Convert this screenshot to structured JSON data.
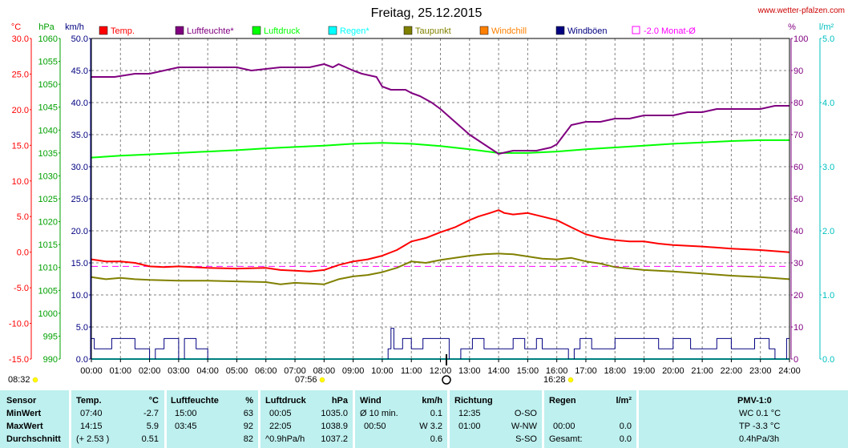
{
  "chart_data": {
    "type": "line",
    "title": "Freitag, 25.12.2015",
    "site": "www.wetter-pfalzen.com",
    "x_range": [
      "00:00",
      "24:00"
    ],
    "x_ticks": [
      "00:00",
      "01:00",
      "02:00",
      "03:00",
      "04:00",
      "05:00",
      "06:00",
      "07:00",
      "08:00",
      "09:00",
      "10:00",
      "11:00",
      "12:00",
      "13:00",
      "14:00",
      "15:00",
      "16:00",
      "17:00",
      "18:00",
      "19:00",
      "20:00",
      "21:00",
      "22:00",
      "23:00",
      "24:00"
    ],
    "sunrise": "08:32",
    "sunset": "16:28",
    "sun_marker": "07:56",
    "axes": {
      "temp": {
        "unit": "°C",
        "ylim": [
          -15,
          30
        ],
        "ticks": [
          "30.0",
          "25.0",
          "20.0",
          "15.0",
          "10.0",
          "5.0",
          "0.0",
          "-5.0",
          "-10.0",
          "-15.0"
        ],
        "color": "#ff0000"
      },
      "pressure": {
        "unit": "hPa",
        "ylim": [
          990,
          1060
        ],
        "ticks": [
          "1060",
          "1055",
          "1050",
          "1045",
          "1040",
          "1035",
          "1030",
          "1025",
          "1020",
          "1015",
          "1010",
          "1005",
          "1000",
          "995",
          "990"
        ],
        "color": "#00c000"
      },
      "wind": {
        "unit": "km/h",
        "ylim": [
          0,
          50
        ],
        "ticks": [
          "50.0",
          "45.0",
          "40.0",
          "35.0",
          "30.0",
          "25.0",
          "20.0",
          "15.0",
          "10.0",
          "5.0",
          "0.0"
        ],
        "color": "#000080"
      },
      "humidity": {
        "unit": "%",
        "ylim": [
          0,
          100
        ],
        "ticks": [
          "100",
          "90",
          "80",
          "70",
          "60",
          "50",
          "40",
          "30",
          "20",
          "10",
          "0"
        ],
        "color": "#800080"
      },
      "rain": {
        "unit": "l/m²",
        "ylim": [
          0,
          5
        ],
        "ticks": [
          "5.0",
          "4.0",
          "3.0",
          "2.0",
          "1.0",
          "0.0"
        ],
        "color": "#00c0c0"
      }
    },
    "legend": [
      {
        "name": "Temp.",
        "color": "#ff0000"
      },
      {
        "name": "Luftfeuchte*",
        "color": "#800080"
      },
      {
        "name": "Luftdruck",
        "color": "#00ff00"
      },
      {
        "name": "Regen*",
        "color": "#00ffff"
      },
      {
        "name": "Taupunkt",
        "color": "#808000"
      },
      {
        "name": "Windchill",
        "color": "#ff8000"
      },
      {
        "name": "Windböen",
        "color": "#000080"
      },
      {
        "name": "-2.0 Monat-Ø",
        "color": "#ff00ff"
      }
    ],
    "series": [
      {
        "name": "Luftfeuchte*",
        "axis": "humidity",
        "color": "#800080",
        "x": [
          0,
          0.8,
          1.5,
          2,
          2.5,
          3,
          4,
          5,
          5.5,
          6.5,
          7.5,
          8,
          8.3,
          8.5,
          9,
          9.3,
          9.8,
          10,
          10.3,
          10.8,
          11,
          11.3,
          11.7,
          12,
          12.5,
          13,
          13.5,
          14,
          14.5,
          15,
          15.3,
          15.8,
          16,
          16.5,
          17,
          17.5,
          18,
          18.5,
          19,
          19.5,
          20,
          20.5,
          21,
          21.5,
          22,
          22.5,
          23,
          23.5,
          24
        ],
        "y": [
          88,
          88,
          89,
          89,
          90,
          91,
          91,
          91,
          90,
          91,
          91,
          92,
          91,
          92,
          90,
          89,
          88,
          85,
          84,
          84,
          83,
          82,
          80,
          78,
          74,
          70,
          67,
          64,
          65,
          65,
          65,
          66,
          67,
          73,
          74,
          74,
          75,
          75,
          76,
          76,
          76,
          77,
          77,
          78,
          78,
          78,
          78,
          79,
          79
        ]
      },
      {
        "name": "Luftdruck",
        "axis": "pressure",
        "color": "#00ff00",
        "x": [
          0,
          1,
          2,
          3,
          4,
          5,
          6,
          7,
          8,
          9,
          10,
          11,
          12,
          13,
          14,
          15,
          16,
          17,
          18,
          19,
          20,
          21,
          22,
          23,
          24
        ],
        "y": [
          1034,
          1034.4,
          1034.7,
          1035,
          1035.3,
          1035.6,
          1036,
          1036.3,
          1036.6,
          1037,
          1037.2,
          1037,
          1036.5,
          1035.8,
          1035,
          1035,
          1035.3,
          1035.8,
          1036.2,
          1036.6,
          1037,
          1037.3,
          1037.6,
          1037.8,
          1037.8
        ]
      },
      {
        "name": "Temp.",
        "axis": "temp",
        "color": "#ff0000",
        "x": [
          0,
          0.5,
          1,
          1.5,
          2,
          2.5,
          3,
          4,
          5,
          6,
          6.5,
          7,
          7.5,
          8,
          8.5,
          9,
          9.5,
          10,
          10.5,
          11,
          11.5,
          12,
          12.5,
          13,
          13.3,
          13.7,
          14,
          14.2,
          14.5,
          15,
          15.5,
          16,
          16.5,
          17,
          17.5,
          18,
          18.5,
          19,
          19.5,
          20,
          21,
          22,
          23,
          24
        ],
        "y": [
          -1.0,
          -1.3,
          -1.3,
          -1.5,
          -2.0,
          -2.1,
          -2.0,
          -2.2,
          -2.3,
          -2.2,
          -2.5,
          -2.6,
          -2.7,
          -2.5,
          -1.8,
          -1.3,
          -1.0,
          -0.5,
          0.3,
          1.5,
          2.0,
          2.8,
          3.5,
          4.5,
          5.0,
          5.5,
          5.9,
          5.5,
          5.3,
          5.5,
          5.0,
          4.5,
          3.5,
          2.5,
          2.0,
          1.7,
          1.5,
          1.5,
          1.2,
          1.0,
          0.8,
          0.5,
          0.3,
          0.0
        ]
      },
      {
        "name": "Taupunkt",
        "axis": "temp",
        "color": "#808000",
        "x": [
          0,
          0.5,
          1,
          1.5,
          2,
          3,
          4,
          5,
          6,
          6.5,
          7,
          7.5,
          8,
          8.5,
          9,
          9.5,
          10,
          10.5,
          11,
          11.5,
          12,
          12.5,
          13,
          13.5,
          14,
          14.5,
          15,
          15.5,
          16,
          16.5,
          17,
          17.5,
          18,
          19,
          20,
          21,
          22,
          23,
          24
        ],
        "y": [
          -3.5,
          -3.8,
          -3.6,
          -3.8,
          -3.9,
          -4.0,
          -4.0,
          -4.1,
          -4.2,
          -4.5,
          -4.3,
          -4.4,
          -4.5,
          -3.8,
          -3.4,
          -3.2,
          -2.8,
          -2.2,
          -1.3,
          -1.5,
          -1.1,
          -0.8,
          -0.5,
          -0.3,
          -0.2,
          -0.3,
          -0.6,
          -0.9,
          -1.0,
          -0.8,
          -1.3,
          -1.6,
          -2.1,
          -2.5,
          -2.7,
          -3.0,
          -3.3,
          -3.5,
          -3.8
        ]
      },
      {
        "name": "-2.0 Monat-Ø",
        "axis": "temp",
        "color": "#ff00ff",
        "dashed": true,
        "x": [
          0,
          24
        ],
        "y": [
          -2.0,
          -2.0
        ]
      },
      {
        "name": "Windböen",
        "axis": "wind",
        "color": "#000080",
        "step": true,
        "x": [
          0,
          0.1,
          0.7,
          1.5,
          2.0,
          2.2,
          2.5,
          3,
          3.2,
          3.6,
          4,
          4.3,
          10.2,
          10.3,
          10.4,
          10.7,
          11,
          11.4,
          12.3,
          12.7,
          13.1,
          13.5,
          14.5,
          14.9,
          15.3,
          15.5,
          16,
          16.4,
          16.6,
          16.8,
          17.2,
          18,
          19.5,
          20,
          20.6,
          21,
          21.5,
          22,
          22.8,
          23.3,
          23.5,
          23.9,
          24
        ],
        "y": [
          3.2,
          1.6,
          3.2,
          1.6,
          0,
          1.6,
          3.2,
          0,
          3.2,
          1.6,
          0,
          0,
          1.6,
          4.8,
          1.6,
          3.2,
          1.6,
          3.2,
          0,
          1.6,
          3.2,
          1.6,
          3.2,
          1.6,
          3.2,
          1.6,
          1.6,
          0,
          1.6,
          3.2,
          1.6,
          3.2,
          1.6,
          3.2,
          1.6,
          1.6,
          3.2,
          1.6,
          3.2,
          1.6,
          0,
          3.2,
          3.2
        ]
      },
      {
        "name": "Regen*",
        "axis": "rain",
        "color": "#00ffff",
        "x": [
          0,
          24
        ],
        "y": [
          0,
          0
        ]
      }
    ]
  },
  "stats": {
    "sensor": {
      "title": "Sensor",
      "rows": [
        "MinWert",
        "MaxWert",
        "Durchschnitt"
      ]
    },
    "temp": {
      "title": "Temp.",
      "unit": "°C",
      "time": [
        "07:40",
        "14:15",
        "(+ 2.53 )"
      ],
      "value": [
        "-2.7",
        "5.9",
        "0.51"
      ]
    },
    "humidity": {
      "title": "Luftfeuchte",
      "unit": "%",
      "time": [
        "15:00",
        "03:45",
        ""
      ],
      "value": [
        "63",
        "92",
        "82"
      ]
    },
    "pressure": {
      "title": "Luftdruck",
      "unit": "hPa",
      "time": [
        "00:05",
        "22:05",
        "^0.9hPa/h"
      ],
      "value": [
        "1035.0",
        "1038.9",
        "1037.2"
      ]
    },
    "wind": {
      "title": "Wind",
      "unit": "km/h",
      "time": [
        "Ø 10 min.",
        "00:50",
        ""
      ],
      "value": [
        "0.1",
        "W 3.2",
        "0.6"
      ]
    },
    "direction": {
      "title": "Richtung",
      "time": [
        "12:35",
        "01:00",
        ""
      ],
      "value": [
        "O-SO",
        "W-NW",
        "S-SO"
      ]
    },
    "rain": {
      "title": "Regen",
      "unit": "l/m²",
      "time": [
        "",
        "00:00",
        "Gesamt:"
      ],
      "value": [
        "",
        "0.0",
        "0.0"
      ]
    },
    "pmv": {
      "title": "PMV-1:0",
      "values": [
        "WC 0.1 °C",
        "TP -3.3 °C",
        "0.4hPa/3h"
      ]
    }
  }
}
